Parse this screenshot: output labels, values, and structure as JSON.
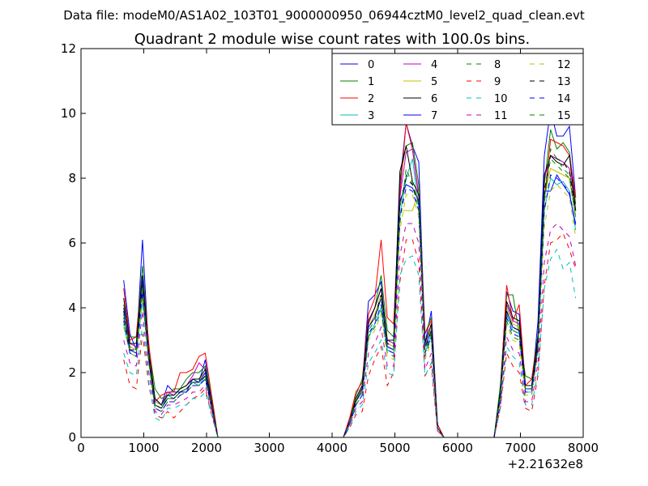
{
  "suptitle": "Data file: modeM0/AS1A02_103T01_9000000950_06944cztM0_level2_quad_clean.evt",
  "chart_data": {
    "type": "line",
    "title": "Quadrant 2 module wise count rates with 100.0s bins.",
    "xlabel": "",
    "ylabel": "",
    "x_offset_label": "+2.21632e8",
    "xlim": [
      0,
      8000
    ],
    "ylim": [
      0,
      12
    ],
    "x_ticks": [
      0,
      1000,
      2000,
      3000,
      4000,
      5000,
      6000,
      7000,
      8000
    ],
    "y_ticks": [
      0,
      2,
      4,
      6,
      8,
      10,
      12
    ],
    "grid": false,
    "legend_position": "top-right",
    "legend_columns": 4,
    "x": [
      680,
      780,
      880,
      980,
      1080,
      1180,
      1280,
      1380,
      1480,
      1580,
      1680,
      1780,
      1880,
      1980,
      2080,
      2180,
      2280,
      4180,
      4280,
      4380,
      4480,
      4580,
      4680,
      4780,
      4880,
      4980,
      5080,
      5180,
      5280,
      5380,
      5480,
      5580,
      5680,
      5780,
      6580,
      6680,
      6780,
      6880,
      6980,
      7080,
      7180,
      7280,
      7380,
      7480,
      7580,
      7680,
      7780,
      7880
    ],
    "series": [
      {
        "name": "0",
        "color": "#0000ff",
        "dash": "solid",
        "values": [
          4.85,
          3.2,
          2.7,
          6.1,
          2.6,
          1.2,
          1.0,
          1.6,
          1.4,
          1.4,
          1.4,
          1.8,
          1.7,
          2.4,
          1.1,
          0,
          0,
          0,
          0.6,
          1.2,
          1.6,
          4.2,
          4.4,
          4.8,
          2.8,
          2.7,
          7.8,
          9.7,
          9.0,
          8.5,
          2.9,
          3.9,
          0.4,
          0,
          0,
          1.5,
          4.5,
          3.9,
          3.8,
          1.5,
          1.5,
          3.6,
          8.7,
          10.1,
          9.3,
          9.3,
          9.6,
          7.4
        ]
      },
      {
        "name": "1",
        "color": "#008000",
        "dash": "solid",
        "values": [
          4.1,
          3.1,
          3.1,
          5.3,
          2.8,
          1.5,
          1.2,
          1.3,
          1.5,
          1.5,
          1.8,
          2.0,
          2.0,
          2.2,
          1.3,
          0,
          0,
          0,
          0.5,
          1.3,
          1.8,
          3.6,
          4.0,
          5.0,
          3.3,
          3.1,
          8.0,
          9.0,
          9.1,
          7.8,
          3.2,
          3.7,
          0.3,
          0,
          0,
          1.6,
          4.4,
          4.4,
          3.2,
          1.9,
          1.8,
          3.2,
          7.8,
          9.5,
          8.9,
          9.1,
          8.8,
          7.2
        ]
      },
      {
        "name": "2",
        "color": "#ff0000",
        "dash": "solid",
        "values": [
          4.6,
          3.0,
          3.1,
          5.0,
          2.9,
          1.1,
          1.3,
          1.4,
          1.4,
          2.0,
          2.0,
          2.1,
          2.5,
          2.6,
          1.3,
          0,
          0,
          0,
          0.6,
          1.4,
          1.7,
          3.8,
          4.3,
          6.1,
          3.7,
          3.5,
          7.5,
          9.7,
          8.9,
          7.5,
          3.2,
          3.6,
          0.4,
          0,
          0,
          1.4,
          4.7,
          3.6,
          4.1,
          1.6,
          1.8,
          3.1,
          7.3,
          9.2,
          9.1,
          9.0,
          8.7,
          7.4
        ]
      },
      {
        "name": "3",
        "color": "#00bfbf",
        "dash": "solid",
        "values": [
          3.5,
          2.6,
          2.5,
          4.2,
          2.4,
          1.0,
          0.9,
          1.3,
          1.2,
          1.4,
          1.5,
          1.7,
          1.6,
          1.9,
          1.0,
          0,
          0,
          0,
          0.5,
          1.1,
          1.4,
          3.1,
          3.5,
          4.0,
          2.7,
          2.6,
          6.8,
          8.0,
          8.6,
          7.1,
          2.6,
          3.2,
          0.3,
          0,
          0,
          1.2,
          3.8,
          3.3,
          3.2,
          1.4,
          1.4,
          2.8,
          7.0,
          8.0,
          7.8,
          7.9,
          7.6,
          6.4
        ]
      },
      {
        "name": "4",
        "color": "#bf00bf",
        "dash": "solid",
        "values": [
          3.9,
          2.9,
          2.8,
          4.8,
          2.6,
          1.1,
          1.0,
          1.4,
          1.3,
          1.5,
          1.6,
          1.9,
          2.3,
          2.1,
          1.1,
          0,
          0,
          0,
          0.5,
          1.2,
          1.6,
          3.5,
          4.0,
          4.6,
          3.0,
          2.9,
          7.4,
          8.8,
          8.9,
          7.4,
          2.9,
          3.5,
          0.3,
          0,
          0,
          1.4,
          4.1,
          3.6,
          3.5,
          1.6,
          1.6,
          3.1,
          8.0,
          8.7,
          8.6,
          8.5,
          8.3,
          7.0
        ]
      },
      {
        "name": "5",
        "color": "#bfbf00",
        "dash": "solid",
        "values": [
          3.7,
          2.8,
          2.7,
          4.6,
          2.5,
          1.1,
          1.0,
          1.3,
          1.3,
          1.5,
          1.6,
          1.8,
          1.8,
          2.0,
          1.1,
          0,
          0,
          0,
          0.5,
          1.2,
          1.5,
          3.4,
          3.8,
          4.4,
          2.9,
          2.8,
          7.0,
          7.0,
          7.0,
          7.6,
          2.8,
          3.4,
          0.3,
          0,
          0,
          1.3,
          4.0,
          3.5,
          3.4,
          1.5,
          1.5,
          3.0,
          7.4,
          8.3,
          8.2,
          8.1,
          8.0,
          6.8
        ]
      },
      {
        "name": "6",
        "color": "#000000",
        "dash": "solid",
        "values": [
          4.3,
          2.9,
          2.9,
          5.0,
          2.6,
          1.2,
          1.0,
          1.3,
          1.3,
          1.5,
          1.6,
          1.8,
          1.8,
          2.1,
          1.1,
          0,
          0,
          0,
          0.5,
          1.2,
          1.6,
          3.6,
          4.0,
          4.6,
          3.0,
          3.0,
          8.2,
          9.0,
          7.9,
          7.5,
          2.9,
          3.5,
          0.3,
          0,
          0,
          1.4,
          4.2,
          3.7,
          3.6,
          1.6,
          1.6,
          3.1,
          8.1,
          8.7,
          8.5,
          8.4,
          8.7,
          7.0
        ]
      },
      {
        "name": "7",
        "color": "#0000ff",
        "dash": "solid",
        "values": [
          4.0,
          2.7,
          2.6,
          4.9,
          2.4,
          1.0,
          0.9,
          1.2,
          1.2,
          1.4,
          1.5,
          1.7,
          1.7,
          2.0,
          1.0,
          0,
          0,
          0,
          0.5,
          1.1,
          1.5,
          3.4,
          3.7,
          4.3,
          2.8,
          2.7,
          7.3,
          7.8,
          7.7,
          7.3,
          2.8,
          3.3,
          0.3,
          0,
          0,
          1.3,
          3.9,
          3.4,
          3.3,
          1.5,
          1.5,
          2.9,
          7.6,
          7.6,
          8.1,
          7.8,
          7.5,
          6.6
        ]
      },
      {
        "name": "8",
        "color": "#008000",
        "dash": "dashed",
        "values": [
          3.7,
          2.6,
          2.5,
          4.4,
          2.3,
          0.9,
          0.8,
          1.1,
          1.1,
          1.3,
          1.4,
          1.6,
          1.6,
          1.8,
          0.9,
          0,
          0,
          0,
          0.4,
          1.0,
          1.3,
          3.1,
          3.4,
          3.9,
          2.6,
          2.5,
          6.6,
          8.3,
          7.8,
          7.0,
          2.5,
          3.1,
          0.3,
          0,
          0,
          1.2,
          3.6,
          3.1,
          3.0,
          1.3,
          1.3,
          2.7,
          7.2,
          8.9,
          8.6,
          8.3,
          8.1,
          6.8
        ]
      },
      {
        "name": "9",
        "color": "#ff0000",
        "dash": "dashed",
        "values": [
          2.4,
          1.6,
          1.5,
          3.2,
          1.6,
          0.7,
          0.6,
          0.8,
          0.6,
          0.8,
          1.0,
          1.2,
          1.3,
          1.5,
          0.7,
          0,
          0,
          0,
          0.3,
          0.7,
          0.8,
          1.9,
          2.4,
          2.8,
          1.6,
          2.0,
          4.8,
          6.1,
          6.1,
          5.4,
          1.9,
          2.2,
          0.2,
          0,
          0,
          0.9,
          2.6,
          2.2,
          2.0,
          0.9,
          0.8,
          1.9,
          4.7,
          6.0,
          6.1,
          6.3,
          5.8,
          5.2
        ]
      },
      {
        "name": "10",
        "color": "#00bfbf",
        "dash": "dashed",
        "values": [
          2.6,
          2.0,
          1.9,
          3.5,
          1.7,
          0.6,
          0.5,
          0.9,
          0.9,
          1.0,
          1.0,
          1.2,
          1.2,
          1.4,
          0.7,
          0,
          0,
          0,
          0.3,
          0.8,
          1.0,
          2.3,
          2.6,
          3.0,
          2.0,
          1.9,
          5.0,
          5.5,
          5.6,
          5.0,
          1.9,
          2.3,
          0.2,
          0,
          0,
          0.9,
          2.8,
          2.5,
          2.3,
          1.0,
          1.0,
          2.0,
          4.6,
          5.5,
          5.8,
          5.2,
          5.4,
          4.3
        ]
      },
      {
        "name": "11",
        "color": "#bf00bf",
        "dash": "dashed",
        "values": [
          3.0,
          2.3,
          2.2,
          3.9,
          2.0,
          0.8,
          0.7,
          1.0,
          1.0,
          1.1,
          1.2,
          1.4,
          1.4,
          1.6,
          0.8,
          0,
          0,
          0,
          0.4,
          0.9,
          1.1,
          2.6,
          2.9,
          3.4,
          2.2,
          2.2,
          5.6,
          6.6,
          6.6,
          6.0,
          2.1,
          2.6,
          0.2,
          0,
          0,
          1.0,
          3.1,
          2.7,
          2.6,
          1.1,
          1.1,
          2.3,
          5.4,
          6.4,
          6.6,
          6.4,
          6.2,
          5.3
        ]
      },
      {
        "name": "12",
        "color": "#bfbf00",
        "dash": "dashed",
        "values": [
          3.4,
          2.6,
          2.5,
          4.3,
          2.3,
          0.9,
          0.8,
          1.1,
          1.1,
          1.3,
          1.4,
          1.6,
          1.6,
          1.8,
          0.9,
          0,
          0,
          0,
          0.4,
          1.0,
          1.3,
          3.0,
          3.3,
          3.8,
          2.5,
          2.4,
          6.4,
          7.5,
          7.5,
          6.8,
          2.4,
          3.0,
          0.3,
          0,
          0,
          1.2,
          3.5,
          3.0,
          2.9,
          1.3,
          1.3,
          2.6,
          6.5,
          7.6,
          7.8,
          7.6,
          7.4,
          6.2
        ]
      },
      {
        "name": "13",
        "color": "#000000",
        "dash": "dashed",
        "values": [
          3.9,
          2.7,
          2.7,
          4.7,
          2.5,
          1.0,
          0.9,
          1.2,
          1.2,
          1.4,
          1.5,
          1.7,
          1.7,
          1.9,
          1.0,
          0,
          0,
          0,
          0.5,
          1.1,
          1.5,
          3.4,
          3.7,
          4.4,
          2.9,
          2.8,
          7.2,
          8.0,
          7.8,
          7.2,
          2.7,
          3.3,
          0.3,
          0,
          0,
          1.3,
          3.9,
          3.4,
          3.3,
          1.5,
          1.5,
          2.9,
          7.6,
          8.7,
          8.6,
          8.5,
          8.2,
          7.0
        ]
      },
      {
        "name": "14",
        "color": "#0000ff",
        "dash": "dashed",
        "values": [
          3.6,
          2.6,
          2.5,
          4.5,
          2.4,
          0.9,
          0.8,
          1.1,
          1.1,
          1.3,
          1.4,
          1.6,
          1.6,
          1.8,
          0.9,
          0,
          0,
          0,
          0.4,
          1.0,
          1.3,
          3.2,
          3.5,
          4.1,
          2.7,
          2.6,
          6.8,
          7.7,
          7.6,
          7.0,
          2.6,
          3.1,
          0.3,
          0,
          0,
          1.2,
          3.7,
          3.2,
          3.1,
          1.4,
          1.4,
          2.7,
          7.0,
          8.1,
          8.0,
          7.8,
          7.6,
          6.5
        ]
      },
      {
        "name": "15",
        "color": "#008000",
        "dash": "dashed",
        "values": [
          3.8,
          2.8,
          2.7,
          4.7,
          2.5,
          1.0,
          0.9,
          1.2,
          1.2,
          1.4,
          1.5,
          1.7,
          1.7,
          1.9,
          1.0,
          0,
          0,
          0,
          0.5,
          1.1,
          1.4,
          3.3,
          3.6,
          4.3,
          2.8,
          2.7,
          7.1,
          8.1,
          7.9,
          7.2,
          2.7,
          3.2,
          0.3,
          0,
          0,
          1.3,
          3.8,
          3.3,
          3.2,
          1.5,
          1.5,
          2.8,
          7.4,
          8.6,
          8.4,
          8.2,
          8.0,
          6.8
        ]
      }
    ]
  }
}
